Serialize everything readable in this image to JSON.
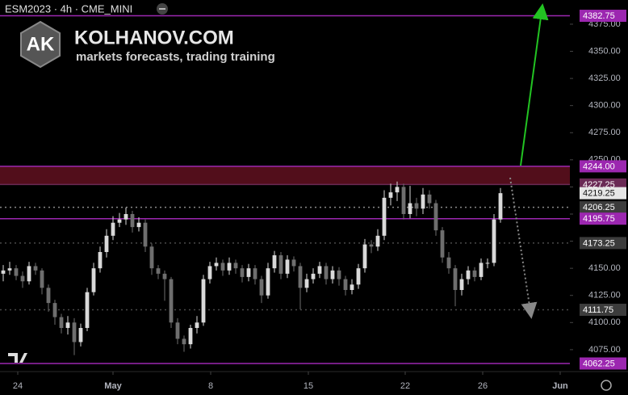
{
  "chart_data": {
    "type": "candlestick",
    "title": "ESM2023 · 4h · CME_MINI",
    "watermark": {
      "logo": "AK",
      "name": "KOLHANOV.COM",
      "tagline": "markets forecasts, trading training"
    },
    "up_color": "#d9d9d9",
    "down_color": "#6e6e6e",
    "xlim": [
      -0.5,
      87.75
    ],
    "xticks": [
      {
        "value": 2.25,
        "label": "24"
      },
      {
        "value": 17,
        "label": "May"
      },
      {
        "value": 32.125,
        "label": "8"
      },
      {
        "value": 47.25,
        "label": "15"
      },
      {
        "value": 62.25,
        "label": "22"
      },
      {
        "value": 74.25,
        "label": "26"
      },
      {
        "value": 86.25,
        "label": "Jun"
      }
    ],
    "ylim": [
      4054.8,
      4397.3
    ],
    "yticks": [
      {
        "value": 4075,
        "label": "4075.00"
      },
      {
        "value": 4100,
        "label": "4100.00"
      },
      {
        "value": 4125,
        "label": "4125.00"
      },
      {
        "value": 4150,
        "label": "4150.00"
      },
      {
        "value": 4175,
        "label": "4175.00"
      },
      {
        "value": 4200,
        "label": "4200.00"
      },
      {
        "value": 4225,
        "label": "4225.00"
      },
      {
        "value": 4250,
        "label": "4250.00"
      },
      {
        "value": 4275,
        "label": "4275.00"
      },
      {
        "value": 4300,
        "label": "4300.00"
      },
      {
        "value": 4325,
        "label": "4325.00"
      },
      {
        "value": 4350,
        "label": "4350.00"
      },
      {
        "value": 4375,
        "label": "4375.00"
      }
    ],
    "zone": {
      "range": [
        4227.25,
        4244
      ],
      "color": "#5b0f1e"
    },
    "levels": [
      {
        "value": 4382.75,
        "color": "#9c27b0",
        "style": "solid"
      },
      {
        "value": 4244,
        "label": "4244.00",
        "color": "#9c27b0",
        "style": "solid"
      },
      {
        "value": 4227.25,
        "color": "#6a2a55",
        "style": "solid"
      },
      {
        "value": 4206.25,
        "color": "#8a8a8a",
        "style": "dotted"
      },
      {
        "value": 4195.75,
        "color": "#9c27b0",
        "style": "solid"
      },
      {
        "value": 4173.25,
        "color": "#4a4a4a",
        "style": "dotted"
      },
      {
        "value": 4111.75,
        "color": "#4a4a4a",
        "style": "dotted"
      },
      {
        "value": 4062.25,
        "color": "#9c27b0",
        "style": "solid"
      }
    ],
    "open": [
      4145,
      4148,
      4150,
      4143,
      4138,
      4152,
      4148,
      4132,
      4118,
      4105,
      4095,
      4100,
      4082,
      4095,
      4128,
      4150,
      4165,
      4180,
      4192,
      4195,
      4200,
      4188,
      4192,
      4170,
      4150,
      4145,
      4140,
      4100,
      4085,
      4080,
      4095,
      4100,
      4140,
      4152,
      4155,
      4148,
      4155,
      4150,
      4142,
      4150,
      4140,
      4125,
      4150,
      4162,
      4145,
      4158,
      4152,
      4132,
      4140,
      4145,
      4152,
      4140,
      4148,
      4140,
      4130,
      4135,
      4150,
      4172,
      4170,
      4180,
      4215,
      4220,
      4225,
      4200,
      4210,
      4205,
      4218,
      4210,
      4185,
      4160,
      4150,
      4130,
      4140,
      4148,
      4142,
      4155,
      4155,
      4195
    ],
    "high": [
      4153,
      4156,
      4153,
      4147,
      4156,
      4155,
      4150,
      4135,
      4121,
      4108,
      4106,
      4104,
      4099,
      4132,
      4155,
      4170,
      4186,
      4198,
      4201,
      4206,
      4203,
      4197,
      4195,
      4173,
      4153,
      4148,
      4142,
      4104,
      4088,
      4098,
      4106,
      4144,
      4156,
      4160,
      4158,
      4160,
      4158,
      4153,
      4154,
      4153,
      4143,
      4155,
      4166,
      4165,
      4162,
      4161,
      4155,
      4145,
      4150,
      4156,
      4155,
      4152,
      4151,
      4143,
      4140,
      4154,
      4177,
      4176,
      4186,
      4222,
      4228,
      4230,
      4228,
      4226,
      4215,
      4224,
      4222,
      4213,
      4188,
      4165,
      4153,
      4145,
      4152,
      4151,
      4159,
      4159,
      4200,
      4224
    ],
    "low": [
      4138,
      4144,
      4139,
      4132,
      4135,
      4144,
      4126,
      4110,
      4098,
      4090,
      4089,
      4070,
      4078,
      4092,
      4125,
      4146,
      4160,
      4176,
      4188,
      4190,
      4183,
      4184,
      4165,
      4144,
      4140,
      4120,
      4095,
      4080,
      4073,
      4076,
      4090,
      4097,
      4136,
      4148,
      4143,
      4144,
      4145,
      4137,
      4138,
      4135,
      4118,
      4122,
      4146,
      4140,
      4141,
      4147,
      4112,
      4128,
      4136,
      4141,
      4135,
      4136,
      4134,
      4125,
      4126,
      4131,
      4146,
      4164,
      4166,
      4176,
      4208,
      4212,
      4195,
      4196,
      4198,
      4200,
      4205,
      4180,
      4155,
      4145,
      4115,
      4125,
      4135,
      4138,
      4139,
      4150,
      4152,
      4192
    ],
    "close": [
      4148,
      4150,
      4143,
      4138,
      4152,
      4148,
      4132,
      4118,
      4105,
      4095,
      4100,
      4082,
      4095,
      4128,
      4150,
      4165,
      4180,
      4192,
      4195,
      4200,
      4188,
      4192,
      4170,
      4150,
      4145,
      4140,
      4100,
      4085,
      4080,
      4095,
      4100,
      4140,
      4152,
      4155,
      4148,
      4155,
      4150,
      4142,
      4150,
      4140,
      4125,
      4150,
      4162,
      4145,
      4158,
      4152,
      4132,
      4140,
      4145,
      4152,
      4140,
      4148,
      4140,
      4130,
      4135,
      4150,
      4172,
      4170,
      4180,
      4215,
      4220,
      4225,
      4200,
      4210,
      4205,
      4218,
      4210,
      4185,
      4160,
      4150,
      4130,
      4140,
      4148,
      4142,
      4155,
      4155,
      4195,
      4219.25
    ]
  }
}
